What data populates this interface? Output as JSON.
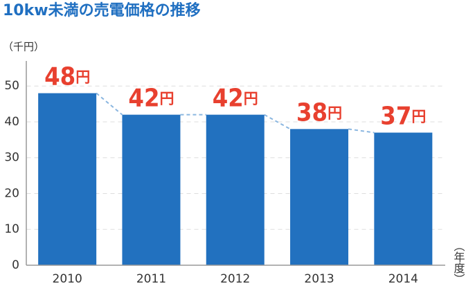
{
  "chart_data": {
    "type": "bar",
    "title": "10kw未満の売電価格の推移",
    "y_label": "（千円）",
    "x_label": "（年度）",
    "categories": [
      "2010",
      "2011",
      "2012",
      "2013",
      "2014"
    ],
    "values": [
      48,
      42,
      42,
      38,
      37
    ],
    "value_unit": "円",
    "color": "#2271bf",
    "label_color": "#e8402f",
    "connector_color": "#8ab6e0",
    "ylim": [
      0,
      57
    ],
    "yticks": [
      0,
      10,
      20,
      30,
      40,
      50
    ],
    "grid": true
  }
}
